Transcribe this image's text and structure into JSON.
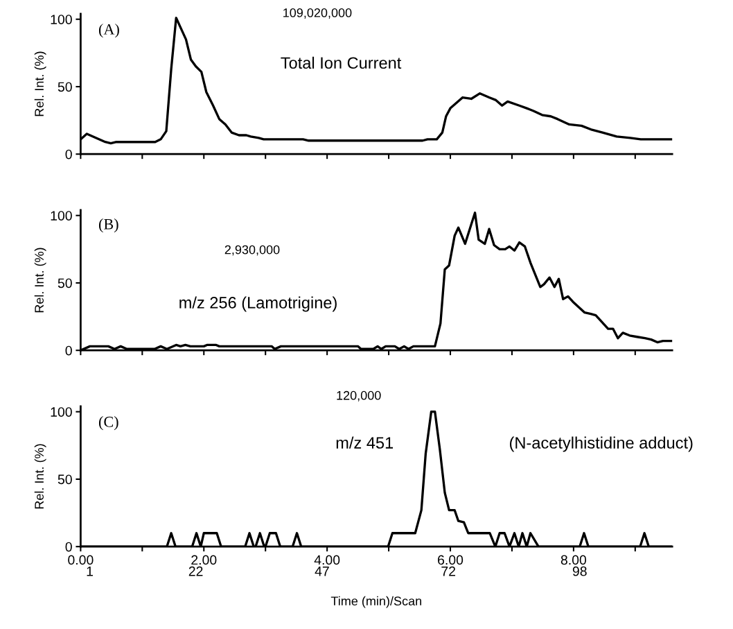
{
  "chart_data": [
    {
      "type": "line",
      "ylabel": "Rel. Int. (%)",
      "annotations": [
        "(A)",
        "109,020,000",
        "Total Ion Current"
      ],
      "xlim": [
        0,
        9.6
      ],
      "ylim": [
        0,
        104
      ],
      "yticks": [
        0,
        50,
        100
      ],
      "tick_labels": "y",
      "grid": false,
      "marker": "none",
      "line_style": "solid",
      "xticks": [
        0,
        1,
        2,
        3,
        4,
        5,
        6,
        7,
        8,
        9
      ],
      "series": [
        {
          "color": "#000000",
          "x": [
            0,
            0.1,
            0.4,
            0.49,
            0.58,
            1.21,
            1.3,
            1.39,
            1.47,
            1.55,
            1.62,
            1.71,
            1.79,
            1.87,
            1.96,
            2.04,
            2.15,
            2.25,
            2.35,
            2.45,
            2.57,
            2.69,
            2.76,
            2.89,
            2.97,
            3.61,
            3.7,
            5.55,
            5.63,
            5.78,
            5.87,
            5.93,
            6.0,
            6.2,
            6.34,
            6.48,
            6.63,
            6.74,
            6.84,
            6.93,
            7.12,
            7.24,
            7.35,
            7.49,
            7.63,
            7.74,
            7.93,
            8.13,
            8.3,
            8.47,
            8.7,
            8.92,
            9.09,
            9.6
          ],
          "values": [
            11,
            15,
            9,
            8,
            9,
            9,
            11,
            17,
            63,
            101,
            94,
            85,
            70,
            65,
            61,
            46,
            36,
            26,
            22,
            16,
            14,
            14,
            13,
            12,
            11,
            11,
            10,
            10,
            11,
            11,
            16,
            28,
            34,
            42,
            41,
            45,
            42,
            40,
            36,
            39,
            36,
            34,
            32,
            29,
            28,
            26,
            22,
            21,
            18,
            16,
            13,
            12,
            11,
            11
          ]
        }
      ]
    },
    {
      "type": "line",
      "ylabel": "Rel. Int. (%)",
      "annotations": [
        "(B)",
        "2,930,000",
        "m/z 256 (Lamotrigine)"
      ],
      "xlim": [
        0,
        9.6
      ],
      "ylim": [
        0,
        104
      ],
      "yticks": [
        0,
        50,
        100
      ],
      "tick_labels": "y",
      "grid": false,
      "marker": "none",
      "line_style": "solid",
      "xticks": [
        0,
        1,
        2,
        3,
        4,
        5,
        6,
        7,
        8,
        9
      ],
      "series": [
        {
          "color": "#000000",
          "x": [
            0,
            0.15,
            0.45,
            0.55,
            0.65,
            0.75,
            1.2,
            1.3,
            1.4,
            1.55,
            1.62,
            1.7,
            1.78,
            2.0,
            2.05,
            2.2,
            2.25,
            3.1,
            3.15,
            3.25,
            4.5,
            4.55,
            4.75,
            4.82,
            4.88,
            4.95,
            5.1,
            5.17,
            5.25,
            5.32,
            5.4,
            5.75,
            5.84,
            5.91,
            5.98,
            6.07,
            6.13,
            6.24,
            6.33,
            6.4,
            6.46,
            6.56,
            6.63,
            6.71,
            6.8,
            6.89,
            6.96,
            7.04,
            7.12,
            7.21,
            7.3,
            7.46,
            7.52,
            7.61,
            7.69,
            7.76,
            7.83,
            7.91,
            7.99,
            8.18,
            8.28,
            8.36,
            8.44,
            8.56,
            8.64,
            8.72,
            8.8,
            8.91,
            9.03,
            9.16,
            9.26,
            9.36,
            9.45,
            9.6
          ],
          "values": [
            0,
            3,
            3,
            1,
            3,
            1,
            1,
            3,
            1,
            4,
            3,
            4,
            3,
            3,
            4,
            4,
            3,
            3,
            1,
            3,
            3,
            1,
            1,
            3,
            1,
            3,
            3,
            1,
            3,
            1,
            3,
            3,
            20,
            60,
            63,
            85,
            91,
            79,
            92,
            102,
            82,
            79,
            90,
            78,
            75,
            75,
            77,
            74,
            80,
            77,
            65,
            47,
            49,
            54,
            47,
            53,
            38,
            40,
            36,
            28,
            27,
            26,
            22,
            16,
            16,
            9,
            13,
            11,
            10,
            9,
            8,
            6,
            7,
            7
          ]
        }
      ]
    },
    {
      "type": "line",
      "ylabel": "Rel. Int. (%)",
      "xlabel": "Time (min)/Scan",
      "annotations": [
        "(C)",
        "120,000",
        "m/z 451",
        "(N-acetylhistidine adduct)"
      ],
      "xlim": [
        0,
        9.6
      ],
      "ylim": [
        0,
        104
      ],
      "yticks": [
        0,
        50,
        100
      ],
      "grid": false,
      "marker": "none",
      "line_style": "solid",
      "xticks": [
        {
          "value": 0,
          "label": "0.00"
        },
        {
          "value": 1,
          "label": null
        },
        {
          "value": 2,
          "label": "2.00"
        },
        {
          "value": 3,
          "label": null
        },
        {
          "value": 4,
          "label": "4.00"
        },
        {
          "value": 5,
          "label": null
        },
        {
          "value": 6,
          "label": "6.00"
        },
        {
          "value": 7,
          "label": null
        },
        {
          "value": 8,
          "label": "8.00"
        },
        {
          "value": 9,
          "label": null
        }
      ],
      "x2lim": [
        -0.8,
        116.3
      ],
      "x2ticks": [
        1,
        22,
        47,
        72,
        98
      ],
      "series": [
        {
          "color": "#000000",
          "x": [
            0,
            1.4,
            1.47,
            1.54,
            1.81,
            1.88,
            1.95,
            2.0,
            2.21,
            2.28,
            2.67,
            2.74,
            2.81,
            2.84,
            2.91,
            2.98,
            3.0,
            3.07,
            3.17,
            3.24,
            3.44,
            3.51,
            3.58,
            4.99,
            5.06,
            5.43,
            5.53,
            5.6,
            5.69,
            5.75,
            5.83,
            5.91,
            5.98,
            6.07,
            6.13,
            6.22,
            6.29,
            6.64,
            6.73,
            6.8,
            6.88,
            6.96,
            7.04,
            7.11,
            7.17,
            7.24,
            7.3,
            7.43,
            8.1,
            8.17,
            8.24,
            9.08,
            9.15,
            9.22,
            9.6
          ],
          "values": [
            0,
            0,
            10,
            0,
            0,
            10,
            0,
            10,
            10,
            0,
            0,
            10,
            0,
            0,
            10,
            0,
            0,
            10,
            10,
            0,
            0,
            10,
            0,
            0,
            10,
            10,
            27,
            69,
            100,
            100,
            72,
            40,
            27,
            27,
            19,
            18,
            10,
            10,
            0,
            10,
            10,
            0,
            10,
            0,
            10,
            0,
            10,
            0,
            0,
            10,
            0,
            0,
            10,
            0,
            0
          ]
        }
      ]
    }
  ]
}
